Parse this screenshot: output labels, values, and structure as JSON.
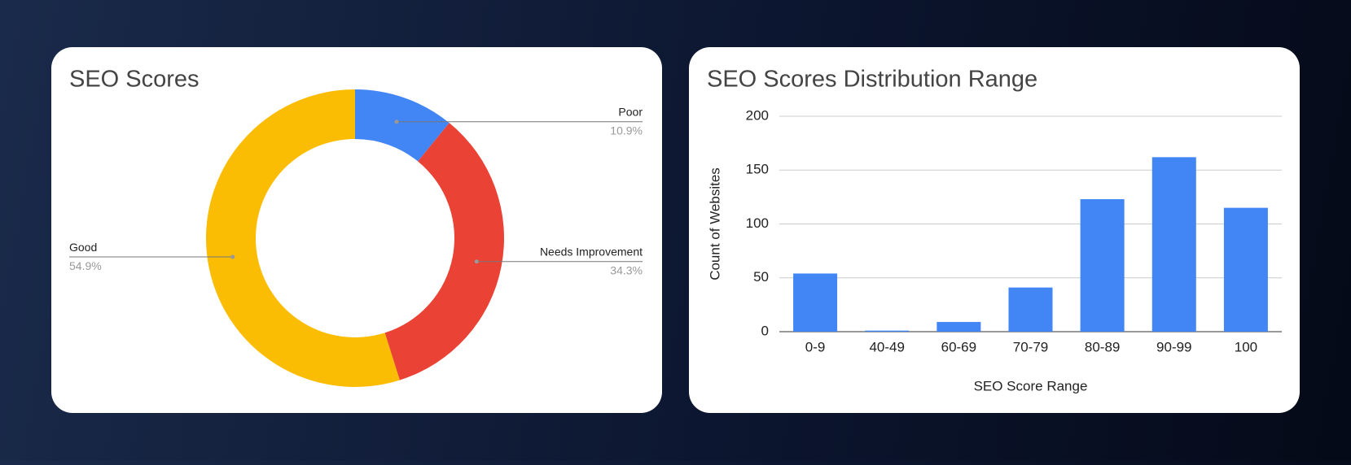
{
  "chart_data": [
    {
      "type": "donut",
      "title": "SEO Scores",
      "categories": [
        "Poor",
        "Needs Improvement",
        "Good"
      ],
      "values": [
        10.9,
        34.3,
        54.9
      ],
      "value_labels": [
        "10.9%",
        "34.3%",
        "54.9%"
      ],
      "colors": [
        "#4285f4",
        "#ea4335",
        "#fbbc04"
      ]
    },
    {
      "type": "bar",
      "title": "SEO Scores Distribution Range",
      "categories": [
        "0-9",
        "40-49",
        "60-69",
        "70-79",
        "80-89",
        "90-99",
        "100"
      ],
      "values": [
        54,
        1,
        9,
        41,
        123,
        162,
        115
      ],
      "color": "#4285f4",
      "x_label": "SEO Score Range",
      "y_label": "Count of Websites",
      "ylim": [
        0,
        200
      ],
      "yticks": [
        0,
        50,
        100,
        150,
        200
      ],
      "grid": true
    }
  ]
}
